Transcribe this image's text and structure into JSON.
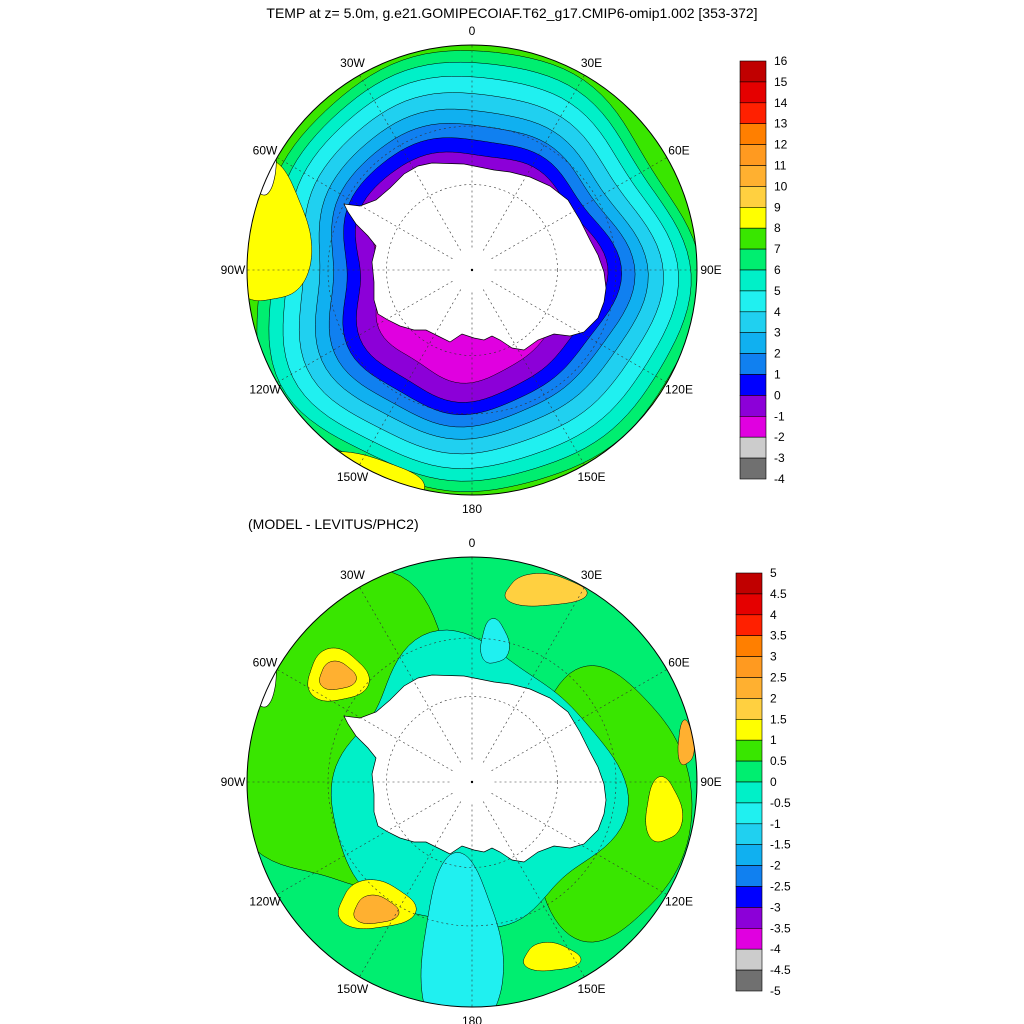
{
  "main_title": "TEMP at z=   5.0m, g.e21.GOMIPECOIAF.T62_g17.CMIP6-omip1.002 [353-372]",
  "sub_title": "(MODEL - LEVITUS/PHC2)",
  "lon_labels": [
    "0",
    "30E",
    "60E",
    "90E",
    "120E",
    "150E",
    "180",
    "150W",
    "120W",
    "90W",
    "60W",
    "30W"
  ],
  "chart_data": [
    {
      "type": "heatmap",
      "projection": "south-polar-stereographic",
      "title": "TEMP at z=   5.0m, g.e21.GOMIPECOIAF.T62_g17.CMIP6-omip1.002 [353-372]",
      "colorbar": {
        "levels": [
          "16",
          "15",
          "14",
          "13",
          "12",
          "11",
          "10",
          "9",
          "8",
          "7",
          "6",
          "5",
          "4",
          "3",
          "2",
          "1",
          "0",
          "-1",
          "-2",
          "-3",
          "-4"
        ],
        "colors": [
          "#c00000",
          "#e50000",
          "#ff2000",
          "#ff7f00",
          "#ff9a20",
          "#ffb030",
          "#ffd040",
          "#ffff00",
          "#39e600",
          "#00ee70",
          "#00f0c8",
          "#20f0f0",
          "#20d0f0",
          "#10b0f0",
          "#1080f0",
          "#0000ff",
          "#8c00d8",
          "#e000e0",
          "#cccccc",
          "#707070"
        ]
      },
      "pattern": "warm (yellow-green, 6-9) at the outer rim, cooling poleward through cyan/blue to 0 to -1.5 (purple/magenta) bordering the Antarctic coast"
    },
    {
      "type": "heatmap",
      "projection": "south-polar-stereographic",
      "title": "(MODEL - LEVITUS/PHC2)",
      "colorbar": {
        "levels": [
          "5",
          "4.5",
          "4",
          "3.5",
          "3",
          "2.5",
          "2",
          "1.5",
          "1",
          "0.5",
          "0",
          "-0.5",
          "-1",
          "-1.5",
          "-2",
          "-2.5",
          "-3",
          "-3.5",
          "-4",
          "-4.5",
          "-5"
        ],
        "colors": [
          "#c00000",
          "#e50000",
          "#ff2000",
          "#ff7f00",
          "#ff9a20",
          "#ffb030",
          "#ffd040",
          "#ffff00",
          "#39e600",
          "#00ee70",
          "#00f0c8",
          "#20f0f0",
          "#20d0f0",
          "#10b0f0",
          "#1080f0",
          "#0000ff",
          "#8c00d8",
          "#e000e0",
          "#cccccc",
          "#707070"
        ]
      },
      "pattern": "mostly 0 to 1 (green) in mid latitudes, -0.5 to 0 (cyan) near Antarctica, local warm patches 1.5-3 near 45W-60W, 130W, 145E and 90E"
    }
  ]
}
